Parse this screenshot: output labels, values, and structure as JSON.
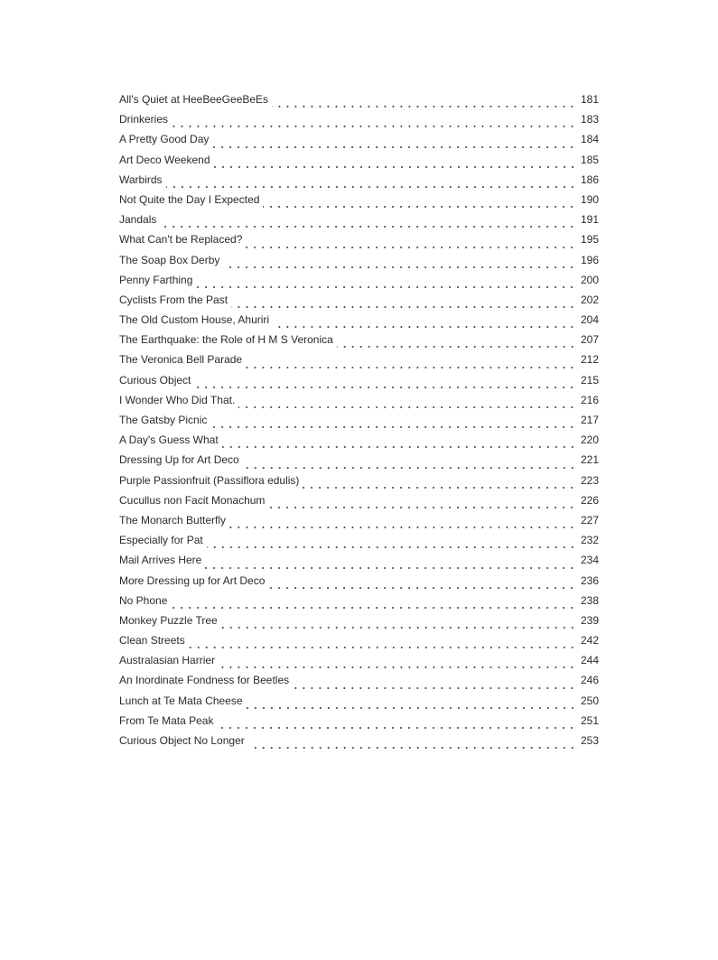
{
  "toc": {
    "entries": [
      {
        "title": "All's Quiet at HeeBeeGeeBeEs",
        "page": "181"
      },
      {
        "title": "Drinkeries",
        "page": "183"
      },
      {
        "title": "A Pretty Good Day",
        "page": "184"
      },
      {
        "title": "Art Deco Weekend",
        "page": "185"
      },
      {
        "title": "Warbirds",
        "page": "186"
      },
      {
        "title": "Not Quite the Day I Expected",
        "page": "190"
      },
      {
        "title": "Jandals",
        "page": "191"
      },
      {
        "title": "What Can't be Replaced?",
        "page": "195"
      },
      {
        "title": "The Soap Box Derby",
        "page": "196"
      },
      {
        "title": "Penny Farthing",
        "page": "200"
      },
      {
        "title": "Cyclists From the Past",
        "page": "202"
      },
      {
        "title": "The Old Custom House, Ahuriri",
        "page": "204"
      },
      {
        "title": "The Earthquake: the Role of H M S Veronica",
        "page": "207"
      },
      {
        "title": "The Veronica Bell Parade",
        "page": "212"
      },
      {
        "title": "Curious Object",
        "page": "215"
      },
      {
        "title": "I Wonder Who Did That.",
        "page": "216"
      },
      {
        "title": "The Gatsby Picnic",
        "page": "217"
      },
      {
        "title": "A Day's Guess What",
        "page": "220"
      },
      {
        "title": "Dressing Up for Art Deco",
        "page": "221"
      },
      {
        "title": "Purple Passionfruit (Passiflora edulis)",
        "page": "223"
      },
      {
        "title": "Cucullus non Facit Monachum",
        "page": "226"
      },
      {
        "title": "The Monarch Butterfly",
        "page": "227"
      },
      {
        "title": "Especially for Pat",
        "page": "232"
      },
      {
        "title": "Mail Arrives Here",
        "page": "234"
      },
      {
        "title": "More Dressing up for Art Deco",
        "page": "236"
      },
      {
        "title": "No Phone",
        "page": "238"
      },
      {
        "title": "Monkey Puzzle Tree",
        "page": "239"
      },
      {
        "title": "Clean Streets",
        "page": "242"
      },
      {
        "title": "Australasian Harrier",
        "page": "244"
      },
      {
        "title": "An Inordinate Fondness for Beetles",
        "page": "246"
      },
      {
        "title": "Lunch at Te Mata Cheese",
        "page": "250"
      },
      {
        "title": "From Te Mata Peak",
        "page": "251"
      },
      {
        "title": "Curious Object No Longer",
        "page": "253"
      }
    ]
  }
}
